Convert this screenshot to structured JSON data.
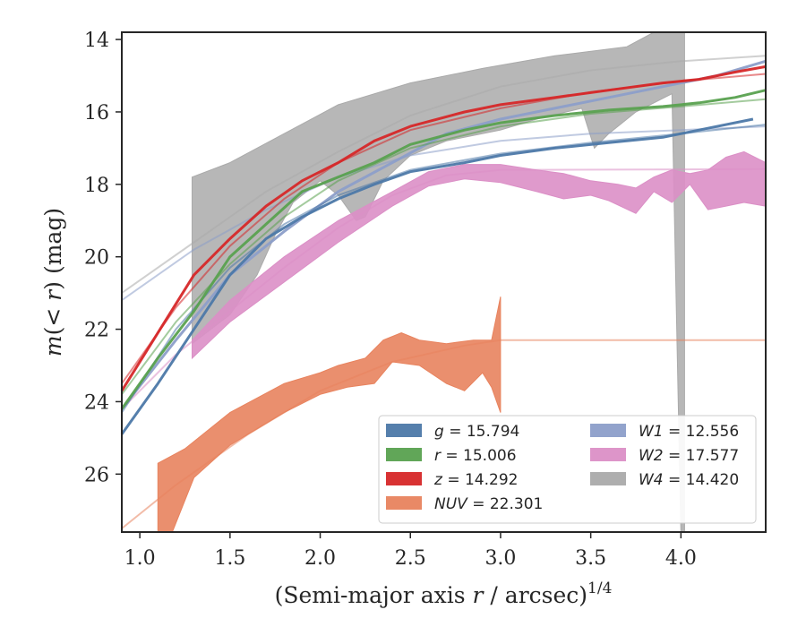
{
  "chart_data": {
    "type": "line",
    "xlabel": "(Semi-major axis r / arcsec)^1/4",
    "ylabel": "m(< r) (mag)",
    "xlim": [
      0.9,
      4.47
    ],
    "ylim": [
      27.6,
      13.8
    ],
    "y_inverted": true,
    "grid": false,
    "legend_position": "lower-right",
    "x_ticks": [
      "1.0",
      "1.5",
      "2.0",
      "2.5",
      "3.0",
      "3.5",
      "4.0"
    ],
    "y_ticks": [
      "14",
      "16",
      "18",
      "20",
      "22",
      "24",
      "26"
    ],
    "legend": [
      {
        "var": "g",
        "value": "15.794",
        "color": "#4c78a8"
      },
      {
        "var": "r",
        "value": "15.006",
        "color": "#59a14f"
      },
      {
        "var": "z",
        "value": "14.292",
        "color": "#d62728"
      },
      {
        "var": "NUV",
        "value": "22.301",
        "color": "#e8835e"
      },
      {
        "var": "W1",
        "value": "12.556",
        "color": "#8c9ec9"
      },
      {
        "var": "W2",
        "value": "17.577",
        "color": "#db8fc6"
      },
      {
        "var": "W4",
        "value": "14.420",
        "color": "#aaaaaa"
      }
    ],
    "series": [
      {
        "name": "W4",
        "color": "#aaaaaa",
        "fill": true,
        "fill_opacity": 0.85,
        "upper": [
          [
            1.29,
            17.8
          ],
          [
            1.5,
            17.4
          ],
          [
            1.8,
            16.6
          ],
          [
            2.1,
            15.8
          ],
          [
            2.5,
            15.2
          ],
          [
            2.9,
            14.8
          ],
          [
            3.3,
            14.45
          ],
          [
            3.7,
            14.2
          ],
          [
            3.85,
            13.8
          ],
          [
            4.02,
            13.8
          ]
        ],
        "lower": [
          [
            1.29,
            22.4
          ],
          [
            1.5,
            21.6
          ],
          [
            1.65,
            20.5
          ],
          [
            1.75,
            19.4
          ],
          [
            1.85,
            18.5
          ],
          [
            2.0,
            17.9
          ],
          [
            2.1,
            18.3
          ],
          [
            2.2,
            19.0
          ],
          [
            2.25,
            18.9
          ],
          [
            2.35,
            17.9
          ],
          [
            2.5,
            17.2
          ],
          [
            2.7,
            16.8
          ],
          [
            3.0,
            16.5
          ],
          [
            3.2,
            16.2
          ],
          [
            3.45,
            15.9
          ],
          [
            3.52,
            17.0
          ],
          [
            3.6,
            16.6
          ],
          [
            3.75,
            16.0
          ],
          [
            3.95,
            15.5
          ],
          [
            4.0,
            27.6
          ],
          [
            4.02,
            27.6
          ]
        ],
        "model": [
          [
            0.9,
            21.0
          ],
          [
            1.3,
            19.6
          ],
          [
            1.7,
            18.2
          ],
          [
            2.1,
            17.1
          ],
          [
            2.5,
            16.1
          ],
          [
            3.0,
            15.3
          ],
          [
            3.5,
            14.85
          ],
          [
            4.0,
            14.6
          ],
          [
            4.47,
            14.45
          ]
        ]
      },
      {
        "name": "NUV",
        "color": "#e8835e",
        "fill": true,
        "fill_opacity": 0.9,
        "upper": [
          [
            1.1,
            25.7
          ],
          [
            1.25,
            25.3
          ],
          [
            1.5,
            24.3
          ],
          [
            1.8,
            23.5
          ],
          [
            2.0,
            23.2
          ],
          [
            2.1,
            23.0
          ],
          [
            2.25,
            22.8
          ],
          [
            2.35,
            22.3
          ],
          [
            2.45,
            22.1
          ],
          [
            2.55,
            22.3
          ],
          [
            2.7,
            22.4
          ],
          [
            2.85,
            22.3
          ],
          [
            2.95,
            22.3
          ],
          [
            3.0,
            21.1
          ]
        ],
        "lower": [
          [
            1.1,
            27.6
          ],
          [
            1.18,
            27.6
          ],
          [
            1.3,
            26.1
          ],
          [
            1.5,
            25.2
          ],
          [
            1.8,
            24.3
          ],
          [
            2.0,
            23.8
          ],
          [
            2.15,
            23.6
          ],
          [
            2.3,
            23.5
          ],
          [
            2.4,
            22.9
          ],
          [
            2.55,
            23.0
          ],
          [
            2.7,
            23.5
          ],
          [
            2.8,
            23.7
          ],
          [
            2.9,
            23.2
          ],
          [
            2.95,
            23.6
          ],
          [
            3.0,
            24.3
          ]
        ],
        "model": [
          [
            0.9,
            27.5
          ],
          [
            1.2,
            26.3
          ],
          [
            1.6,
            24.9
          ],
          [
            2.0,
            23.7
          ],
          [
            2.4,
            22.9
          ],
          [
            2.8,
            22.45
          ],
          [
            3.0,
            22.3
          ],
          [
            4.47,
            22.3
          ]
        ]
      },
      {
        "name": "W2",
        "color": "#db8fc6",
        "fill": true,
        "fill_opacity": 0.9,
        "upper": [
          [
            1.29,
            22.3
          ],
          [
            1.5,
            21.2
          ],
          [
            1.8,
            20.0
          ],
          [
            2.1,
            19.0
          ],
          [
            2.4,
            18.2
          ],
          [
            2.6,
            17.65
          ],
          [
            2.8,
            17.45
          ],
          [
            3.0,
            17.45
          ],
          [
            3.2,
            17.6
          ],
          [
            3.35,
            17.7
          ],
          [
            3.5,
            17.9
          ],
          [
            3.65,
            18.0
          ],
          [
            3.75,
            18.1
          ],
          [
            3.85,
            17.8
          ],
          [
            3.95,
            17.6
          ],
          [
            4.05,
            17.7
          ],
          [
            4.15,
            17.6
          ],
          [
            4.25,
            17.25
          ],
          [
            4.35,
            17.1
          ],
          [
            4.47,
            17.4
          ]
        ],
        "lower": [
          [
            1.29,
            22.8
          ],
          [
            1.5,
            21.8
          ],
          [
            1.8,
            20.7
          ],
          [
            2.1,
            19.6
          ],
          [
            2.4,
            18.6
          ],
          [
            2.6,
            18.05
          ],
          [
            2.8,
            17.85
          ],
          [
            3.0,
            17.95
          ],
          [
            3.2,
            18.2
          ],
          [
            3.35,
            18.4
          ],
          [
            3.5,
            18.3
          ],
          [
            3.6,
            18.45
          ],
          [
            3.75,
            18.8
          ],
          [
            3.85,
            18.2
          ],
          [
            3.95,
            18.5
          ],
          [
            4.05,
            18.0
          ],
          [
            4.15,
            18.7
          ],
          [
            4.25,
            18.6
          ],
          [
            4.35,
            18.5
          ],
          [
            4.47,
            18.6
          ]
        ],
        "model": [
          [
            0.9,
            24.2
          ],
          [
            1.2,
            22.7
          ],
          [
            1.5,
            21.5
          ],
          [
            1.8,
            20.3
          ],
          [
            2.1,
            19.2
          ],
          [
            2.4,
            18.3
          ],
          [
            2.7,
            17.75
          ],
          [
            3.0,
            17.6
          ],
          [
            4.47,
            17.58
          ]
        ]
      },
      {
        "name": "W1",
        "color": "#8c9ec9",
        "width": 3,
        "data": [
          [
            0.9,
            24.2
          ],
          [
            1.2,
            22.3
          ],
          [
            1.5,
            20.5
          ],
          [
            1.8,
            19.3
          ],
          [
            2.1,
            18.2
          ],
          [
            2.4,
            17.4
          ],
          [
            2.7,
            16.6
          ],
          [
            3.0,
            16.2
          ],
          [
            3.3,
            15.9
          ],
          [
            3.6,
            15.6
          ],
          [
            3.9,
            15.3
          ],
          [
            4.2,
            15.0
          ],
          [
            4.47,
            14.6
          ]
        ],
        "model": [
          [
            0.9,
            21.2
          ],
          [
            1.3,
            19.8
          ],
          [
            1.7,
            18.7
          ],
          [
            2.1,
            17.8
          ],
          [
            2.5,
            17.2
          ],
          [
            3.0,
            16.8
          ],
          [
            3.5,
            16.6
          ],
          [
            4.0,
            16.5
          ],
          [
            4.47,
            16.4
          ]
        ]
      },
      {
        "name": "g",
        "color": "#4c78a8",
        "width": 3,
        "data": [
          [
            0.9,
            24.9
          ],
          [
            1.1,
            23.5
          ],
          [
            1.3,
            22.0
          ],
          [
            1.5,
            20.5
          ],
          [
            1.7,
            19.5
          ],
          [
            1.9,
            18.9
          ],
          [
            2.1,
            18.4
          ],
          [
            2.3,
            18.0
          ],
          [
            2.5,
            17.65
          ],
          [
            2.8,
            17.4
          ],
          [
            3.0,
            17.2
          ],
          [
            3.3,
            17.0
          ],
          [
            3.6,
            16.85
          ],
          [
            3.9,
            16.7
          ],
          [
            4.1,
            16.5
          ],
          [
            4.4,
            16.2
          ]
        ],
        "model": [
          [
            0.9,
            24.3
          ],
          [
            1.2,
            22.0
          ],
          [
            1.5,
            20.3
          ],
          [
            1.8,
            19.1
          ],
          [
            2.1,
            18.3
          ],
          [
            2.5,
            17.6
          ],
          [
            3.0,
            17.15
          ],
          [
            3.5,
            16.85
          ],
          [
            4.0,
            16.6
          ],
          [
            4.47,
            16.35
          ]
        ]
      },
      {
        "name": "r",
        "color": "#59a14f",
        "width": 3,
        "data": [
          [
            0.9,
            24.2
          ],
          [
            1.1,
            22.8
          ],
          [
            1.3,
            21.5
          ],
          [
            1.5,
            20.0
          ],
          [
            1.7,
            19.1
          ],
          [
            1.9,
            18.2
          ],
          [
            2.1,
            17.8
          ],
          [
            2.3,
            17.4
          ],
          [
            2.5,
            16.9
          ],
          [
            2.8,
            16.5
          ],
          [
            3.0,
            16.3
          ],
          [
            3.3,
            16.1
          ],
          [
            3.6,
            15.95
          ],
          [
            3.9,
            15.85
          ],
          [
            4.1,
            15.75
          ],
          [
            4.3,
            15.6
          ],
          [
            4.47,
            15.4
          ]
        ],
        "model": [
          [
            0.9,
            23.8
          ],
          [
            1.2,
            21.8
          ],
          [
            1.5,
            20.2
          ],
          [
            1.8,
            18.9
          ],
          [
            2.1,
            17.9
          ],
          [
            2.5,
            17.0
          ],
          [
            3.0,
            16.4
          ],
          [
            3.5,
            16.05
          ],
          [
            4.0,
            15.85
          ],
          [
            4.47,
            15.65
          ]
        ]
      },
      {
        "name": "z",
        "color": "#d62728",
        "width": 3,
        "data": [
          [
            0.9,
            23.7
          ],
          [
            1.1,
            22.1
          ],
          [
            1.3,
            20.5
          ],
          [
            1.5,
            19.5
          ],
          [
            1.7,
            18.6
          ],
          [
            1.9,
            17.9
          ],
          [
            2.1,
            17.4
          ],
          [
            2.3,
            16.8
          ],
          [
            2.5,
            16.4
          ],
          [
            2.8,
            16.0
          ],
          [
            3.0,
            15.8
          ],
          [
            3.3,
            15.6
          ],
          [
            3.6,
            15.4
          ],
          [
            3.9,
            15.2
          ],
          [
            4.1,
            15.1
          ],
          [
            4.3,
            14.9
          ],
          [
            4.47,
            14.75
          ]
        ],
        "model": [
          [
            0.9,
            23.5
          ],
          [
            1.2,
            21.4
          ],
          [
            1.5,
            19.7
          ],
          [
            1.8,
            18.4
          ],
          [
            2.1,
            17.4
          ],
          [
            2.5,
            16.5
          ],
          [
            3.0,
            15.9
          ],
          [
            3.5,
            15.45
          ],
          [
            4.0,
            15.15
          ],
          [
            4.47,
            14.95
          ]
        ]
      }
    ]
  }
}
